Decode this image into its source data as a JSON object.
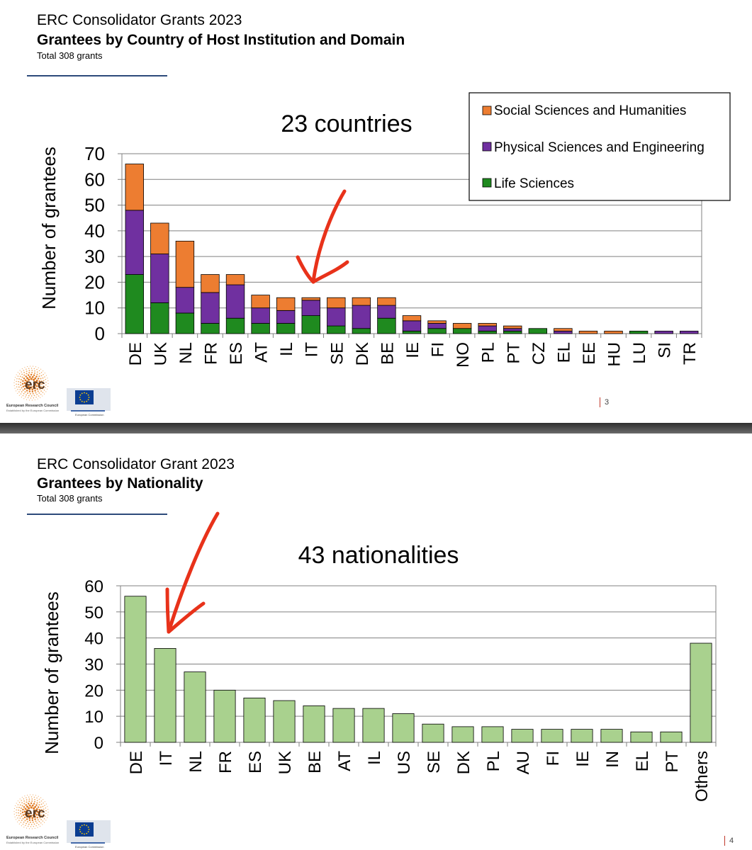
{
  "slide1": {
    "title": "ERC Consolidator Grants 2023",
    "subtitle": "Grantees by Country of Host Institution and Domain",
    "total": "Total 308 grants",
    "page_number": "3",
    "logo_text": "erc",
    "org_name": "European Research Council",
    "org_tagline": "Established by the European Commission",
    "commission_label": "European Commission"
  },
  "slide2": {
    "title": "ERC Consolidator Grant 2023",
    "subtitle": "Grantees by Nationality",
    "total": "Total 308 grants",
    "page_number": "4",
    "logo_text": "erc",
    "org_name": "European Research Council",
    "org_tagline": "Established by the European Commission",
    "commission_label": "European Commission"
  },
  "colors": {
    "life": "#1f8a1f",
    "physical": "#7030a0",
    "social": "#ed7d31",
    "nationality": "#a9d18e",
    "annotation": "#e8321a"
  },
  "chart_data": [
    {
      "type": "bar",
      "stacked": true,
      "title": "23 countries",
      "xlabel": "",
      "ylabel": "Number of grantees",
      "ylim": [
        0,
        70
      ],
      "yticks": [
        0,
        10,
        20,
        30,
        40,
        50,
        60,
        70
      ],
      "grid": true,
      "legend_position": "top-right",
      "categories": [
        "DE",
        "UK",
        "NL",
        "FR",
        "ES",
        "AT",
        "IL",
        "IT",
        "SE",
        "DK",
        "BE",
        "IE",
        "FI",
        "NO",
        "PL",
        "PT",
        "CZ",
        "EL",
        "EE",
        "HU",
        "LU",
        "SI",
        "TR"
      ],
      "series": [
        {
          "name": "Life Sciences",
          "values": [
            23,
            12,
            8,
            4,
            6,
            4,
            4,
            7,
            3,
            2,
            6,
            1,
            2,
            2,
            1,
            1,
            2,
            0,
            0,
            0,
            1,
            0,
            0
          ]
        },
        {
          "name": "Physical Sciences and Engineering",
          "values": [
            25,
            19,
            10,
            12,
            13,
            6,
            5,
            6,
            7,
            9,
            5,
            4,
            2,
            0,
            2,
            1,
            0,
            1,
            0,
            0,
            0,
            1,
            1
          ]
        },
        {
          "name": "Social Sciences and Humanities",
          "values": [
            18,
            12,
            18,
            7,
            4,
            5,
            5,
            1,
            4,
            3,
            3,
            2,
            1,
            2,
            1,
            1,
            0,
            1,
            1,
            1,
            0,
            0,
            0
          ]
        }
      ],
      "legend_order": [
        "Social Sciences and Humanities",
        "Physical Sciences and Engineering",
        "Life Sciences"
      ],
      "annotations": [
        {
          "type": "arrow",
          "points_to": "IT"
        }
      ]
    },
    {
      "type": "bar",
      "title": "43 nationalities",
      "xlabel": "",
      "ylabel": "Number of grantees",
      "ylim": [
        0,
        60
      ],
      "yticks": [
        0,
        10,
        20,
        30,
        40,
        50,
        60
      ],
      "grid": true,
      "categories": [
        "DE",
        "IT",
        "NL",
        "FR",
        "ES",
        "UK",
        "BE",
        "AT",
        "IL",
        "US",
        "SE",
        "DK",
        "PL",
        "AU",
        "FI",
        "IE",
        "IN",
        "EL",
        "PT",
        "Others"
      ],
      "values": [
        56,
        36,
        27,
        20,
        17,
        16,
        14,
        13,
        13,
        11,
        7,
        6,
        6,
        5,
        5,
        5,
        5,
        4,
        4,
        38
      ],
      "annotations": [
        {
          "type": "arrow",
          "points_to": "IT"
        }
      ]
    }
  ]
}
